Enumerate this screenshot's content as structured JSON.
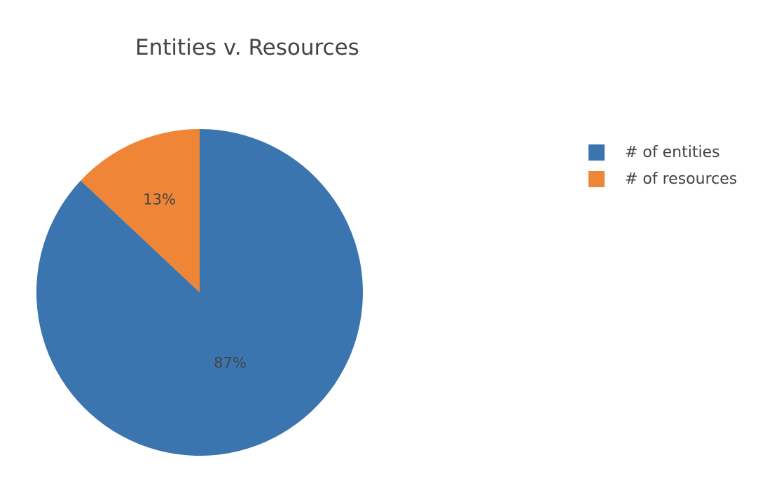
{
  "chart_data": {
    "type": "pie",
    "title": "Entities v. Resources",
    "slices": [
      {
        "label": "# of entities",
        "percent": 87,
        "display": "87%",
        "color": "#3b75af"
      },
      {
        "label": "# of resources",
        "percent": 13,
        "display": "13%",
        "color": "#ef8536"
      }
    ],
    "start": "top, clockwise",
    "legend_position": "right"
  }
}
